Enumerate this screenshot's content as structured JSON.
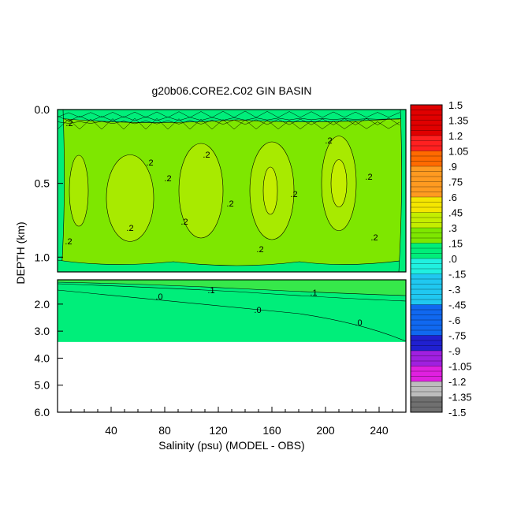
{
  "chart_data": {
    "type": "heatmap",
    "title": "g20b06.CORE2.C02 GIN BASIN",
    "xlabel": "Salinity (psu) (MODEL - OBS)",
    "ylabel": "DEPTH (km)",
    "xlim": [
      0,
      260
    ],
    "x_ticks": [
      "40",
      "80",
      "120",
      "160",
      "200",
      "240"
    ],
    "upper_panel": {
      "ylim": [
        0.0,
        1.1
      ],
      "y_ticks": [
        "0.0",
        "0.5",
        "1.0"
      ]
    },
    "lower_panel": {
      "ylim": [
        1.1,
        6.0
      ],
      "y_ticks": [
        "2.0",
        "3.0",
        "4.0",
        "5.0",
        "6.0"
      ],
      "data_bottom_depth": 3.4
    },
    "colorbar": {
      "labels": [
        "1.5",
        "1.35",
        "1.2",
        "1.05",
        ".9",
        ".75",
        ".6",
        ".45",
        ".3",
        ".15",
        ".0",
        "-.15",
        "-.3",
        "-.45",
        "-.6",
        "-.75",
        "-.9",
        "-1.05",
        "-1.2",
        "-1.35",
        "-1.5"
      ],
      "levels": [
        1.5,
        1.35,
        1.2,
        1.05,
        0.9,
        0.75,
        0.6,
        0.45,
        0.3,
        0.15,
        0.0,
        -0.15,
        -0.3,
        -0.45,
        -0.6,
        -0.75,
        -0.9,
        -1.05,
        -1.2,
        -1.35,
        -1.5
      ]
    },
    "contour_labels": [
      ".1",
      ".2",
      ".0"
    ],
    "colors": {
      "band_0_to_015": "#00ee7a",
      "band_015_to_03": "#7ee700",
      "band_03_to_045": "#c4ee00",
      "missing": "#ffffff"
    }
  }
}
